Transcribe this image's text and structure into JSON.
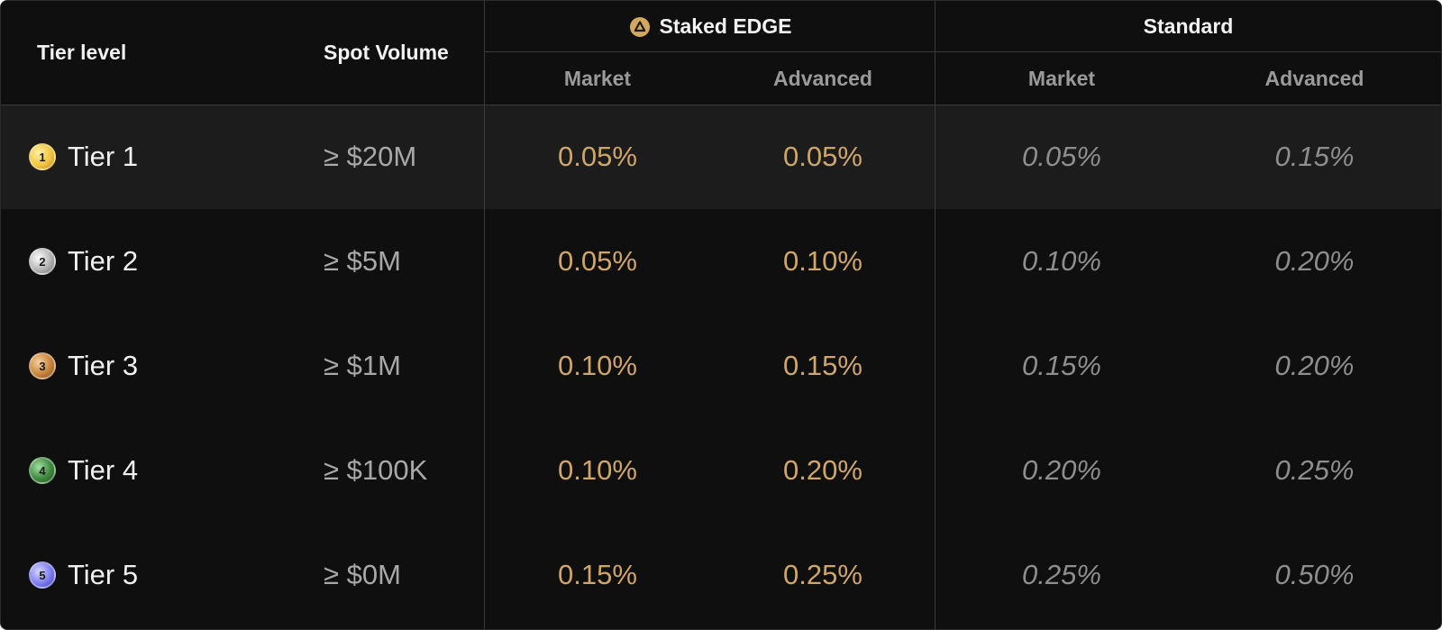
{
  "header": {
    "tier_level": "Tier level",
    "spot_volume": "Spot Volume",
    "staked_group": "Staked EDGE",
    "standard_group": "Standard",
    "staked_market": "Market",
    "staked_advanced": "Advanced",
    "standard_market": "Market",
    "standard_advanced": "Advanced",
    "staked_icon": "edge-token-icon"
  },
  "colors": {
    "background": "#0f0f0f",
    "highlight_row": "#1c1c1c",
    "staked_value": "#cfa56a",
    "standard_value": "#8e8e8e",
    "tier1_medal": "#f2c640",
    "tier2_medal": "#b5b5b5",
    "tier3_medal": "#c9853c",
    "tier4_medal": "#3f8a3f",
    "tier5_medal": "#7f7ff0"
  },
  "tiers": [
    {
      "label": "Tier 1",
      "badge": "1",
      "volume": "≥ $20M",
      "staked_market": "0.05%",
      "staked_advanced": "0.05%",
      "standard_market": "0.05%",
      "standard_advanced": "0.15%"
    },
    {
      "label": "Tier 2",
      "badge": "2",
      "volume": "≥ $5M",
      "staked_market": "0.05%",
      "staked_advanced": "0.10%",
      "standard_market": "0.10%",
      "standard_advanced": "0.20%"
    },
    {
      "label": "Tier 3",
      "badge": "3",
      "volume": "≥ $1M",
      "staked_market": "0.10%",
      "staked_advanced": "0.15%",
      "standard_market": "0.15%",
      "standard_advanced": "0.20%"
    },
    {
      "label": "Tier 4",
      "badge": "4",
      "volume": "≥ $100K",
      "staked_market": "0.10%",
      "staked_advanced": "0.20%",
      "standard_market": "0.20%",
      "standard_advanced": "0.25%"
    },
    {
      "label": "Tier 5",
      "badge": "5",
      "volume": "≥ $0M",
      "staked_market": "0.15%",
      "staked_advanced": "0.25%",
      "standard_market": "0.25%",
      "standard_advanced": "0.50%"
    }
  ]
}
